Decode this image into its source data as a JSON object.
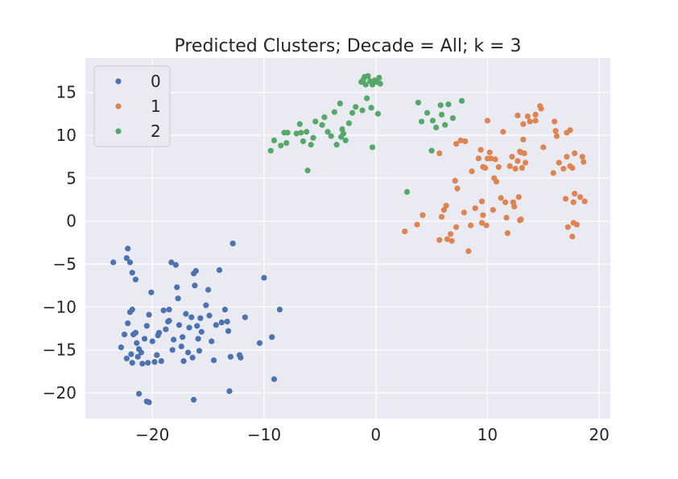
{
  "chart_data": {
    "type": "scatter",
    "title": "Predicted Clusters; Decade = All; k = 3",
    "xlabel": "",
    "ylabel": "",
    "xlim": [
      -26,
      21
    ],
    "ylim": [
      -23,
      19
    ],
    "xticks": [
      -20,
      -10,
      0,
      10,
      20
    ],
    "yticks": [
      -20,
      -15,
      -10,
      -5,
      0,
      5,
      10,
      15
    ],
    "grid": true,
    "legend_position": "top-left",
    "series": [
      {
        "name": "0",
        "color": "#4c72b0",
        "points": [
          [
            -23.5,
            -4.8
          ],
          [
            -22.2,
            -3.2
          ],
          [
            -22.3,
            -4.3
          ],
          [
            -22,
            -4.8
          ],
          [
            -21.8,
            -6
          ],
          [
            -21.5,
            -6.8
          ],
          [
            -22.8,
            -14.7
          ],
          [
            -22.5,
            -13.2
          ],
          [
            -22.2,
            -11.9
          ],
          [
            -22,
            -10.6
          ],
          [
            -21.8,
            -10.3
          ],
          [
            -21.7,
            -13.2
          ],
          [
            -21.5,
            -13
          ],
          [
            -21.4,
            -14.2
          ],
          [
            -21.2,
            -14.9
          ],
          [
            -21.9,
            -15.5
          ],
          [
            -22.3,
            -16
          ],
          [
            -21.8,
            -16.5
          ],
          [
            -21.3,
            -15.8
          ],
          [
            -21,
            -15.3
          ],
          [
            -20.9,
            -16.6
          ],
          [
            -20.7,
            -13.7
          ],
          [
            -20.5,
            -12.2
          ],
          [
            -20.3,
            -10.9
          ],
          [
            -20.1,
            -8.3
          ],
          [
            -20,
            -14
          ],
          [
            -19.8,
            -16.4
          ],
          [
            -19.6,
            -15.6
          ],
          [
            -19.4,
            -13
          ],
          [
            -19.2,
            -16.3
          ],
          [
            -19,
            -10.4
          ],
          [
            -18.8,
            -12.6
          ],
          [
            -18.6,
            -11.7
          ],
          [
            -18.5,
            -10.3
          ],
          [
            -18.3,
            -4.8
          ],
          [
            -18.2,
            -15
          ],
          [
            -18.1,
            -13.8
          ],
          [
            -17.9,
            -5.1
          ],
          [
            -17.8,
            -7.7
          ],
          [
            -17.7,
            -9
          ],
          [
            -17.6,
            -12.1
          ],
          [
            -17.4,
            -14.6
          ],
          [
            -17.2,
            -16.3
          ],
          [
            -17,
            -10.8
          ],
          [
            -16.8,
            -15.3
          ],
          [
            -16.7,
            -12.4
          ],
          [
            -16.5,
            -11.2
          ],
          [
            -16.4,
            -15.9
          ],
          [
            -16.3,
            -6.1
          ],
          [
            -16.1,
            -5.8
          ],
          [
            -16.2,
            -7.5
          ],
          [
            -16,
            -12.2
          ],
          [
            -15.9,
            -13.7
          ],
          [
            -15.8,
            -15.1
          ],
          [
            -15.7,
            -11.3
          ],
          [
            -15.6,
            -12.9
          ],
          [
            -15.2,
            -9.8
          ],
          [
            -14.9,
            -11
          ],
          [
            -15,
            -8
          ],
          [
            -14.7,
            -14
          ],
          [
            -14.5,
            -16.2
          ],
          [
            -14.3,
            -12.1
          ],
          [
            -14,
            -5.7
          ],
          [
            -13.8,
            -11.8
          ],
          [
            -13.5,
            -10.3
          ],
          [
            -13.3,
            -11.7
          ],
          [
            -13.2,
            -12.8
          ],
          [
            -13,
            -15.8
          ],
          [
            -12.8,
            -2.6
          ],
          [
            -12.2,
            -15.6
          ],
          [
            -12.1,
            -15.9
          ],
          [
            -11.7,
            -11.2
          ],
          [
            -10.4,
            -14.2
          ],
          [
            -10,
            -6.6
          ],
          [
            -9.3,
            -13.5
          ],
          [
            -9.1,
            -18.4
          ],
          [
            -8.6,
            -10.3
          ],
          [
            -20.3,
            -21.1
          ],
          [
            -20.5,
            -21.0
          ],
          [
            -21.2,
            -20.1
          ],
          [
            -16.3,
            -20.8
          ],
          [
            -13.1,
            -19.8
          ],
          [
            -18.5,
            -11.6
          ],
          [
            -17.3,
            -13.5
          ],
          [
            -19.5,
            -13.3
          ],
          [
            -20.4,
            -16.5
          ]
        ]
      },
      {
        "name": "1",
        "color": "#dd8452",
        "points": [
          [
            2.6,
            -1.2
          ],
          [
            3.7,
            -0.4
          ],
          [
            4.2,
            0.7
          ],
          [
            5.7,
            -2.2
          ],
          [
            5.9,
            0.5
          ],
          [
            6.1,
            1.3
          ],
          [
            6.3,
            1.8
          ],
          [
            6.4,
            -2.1
          ],
          [
            6.8,
            -2.3
          ],
          [
            7.2,
            -0.7
          ],
          [
            6.7,
            -1.5
          ],
          [
            7.1,
            4.7
          ],
          [
            7.3,
            3.8
          ],
          [
            7.6,
            9.4
          ],
          [
            7.2,
            9
          ],
          [
            8,
            9.3
          ],
          [
            7.9,
            1
          ],
          [
            8.3,
            -3.5
          ],
          [
            8.5,
            -0.5
          ],
          [
            8.6,
            5.8
          ],
          [
            8.9,
            1.5
          ],
          [
            9.2,
            7.3
          ],
          [
            9.4,
            8.3
          ],
          [
            9.5,
            2.3
          ],
          [
            9.6,
            0.7
          ],
          [
            9.5,
            -0.2
          ],
          [
            9.8,
            6.2
          ],
          [
            9.9,
            -0.5
          ],
          [
            10,
            7.3
          ],
          [
            10.3,
            7.3
          ],
          [
            10.6,
            5
          ],
          [
            10.8,
            4.6
          ],
          [
            10.5,
            1.3
          ],
          [
            10.7,
            7.2
          ],
          [
            11.2,
            2.7
          ],
          [
            11.4,
            10.4
          ],
          [
            11.6,
            2.2
          ],
          [
            11.7,
            0.4
          ],
          [
            11.8,
            -1.4
          ],
          [
            12,
            6.4
          ],
          [
            12.2,
            7.5
          ],
          [
            12.3,
            2.2
          ],
          [
            12.4,
            1.7
          ],
          [
            12.5,
            6.1
          ],
          [
            12.7,
            7
          ],
          [
            12.9,
            0.1
          ],
          [
            12.8,
            2.8
          ],
          [
            13,
            8
          ],
          [
            13.2,
            9.5
          ],
          [
            13.2,
            11.3
          ],
          [
            13.4,
            6.8
          ],
          [
            13.6,
            12.2
          ],
          [
            13.8,
            11.6
          ],
          [
            14.3,
            12.4
          ],
          [
            14.7,
            13.4
          ],
          [
            14.8,
            13.1
          ],
          [
            15,
            8.6
          ],
          [
            15.9,
            5.6
          ],
          [
            16,
            11.6
          ],
          [
            16.1,
            10.5
          ],
          [
            16.2,
            9.9
          ],
          [
            16.4,
            6.8
          ],
          [
            16.8,
            6.1
          ],
          [
            17.1,
            10.3
          ],
          [
            17.4,
            10.6
          ],
          [
            17.2,
            -0.7
          ],
          [
            17.4,
            6.4
          ],
          [
            17.6,
            -1.8
          ],
          [
            17.7,
            -0.2
          ],
          [
            17.8,
            3.2
          ],
          [
            18,
            -0.4
          ],
          [
            17.8,
            7.9
          ],
          [
            18.3,
            2.8
          ],
          [
            18.5,
            7.5
          ],
          [
            18.6,
            6.9
          ],
          [
            18.7,
            2.3
          ],
          [
            17.1,
            7.5
          ],
          [
            17,
            2.6
          ],
          [
            13.1,
            6.2
          ],
          [
            12.9,
            8.1
          ],
          [
            13.3,
            7.9
          ],
          [
            10,
            11.7
          ],
          [
            12.7,
            12.3
          ],
          [
            14.3,
            11.7
          ],
          [
            17.6,
            6.2
          ],
          [
            17.7,
            2.2
          ],
          [
            13,
            0.2
          ],
          [
            11,
            6.3
          ],
          [
            9.6,
            6.3
          ],
          [
            5.7,
            7.9
          ],
          [
            10.2,
            8
          ]
        ]
      },
      {
        "name": "2",
        "color": "#55a868",
        "points": [
          [
            -9.4,
            8.2
          ],
          [
            -9.1,
            9.4
          ],
          [
            -8.5,
            8.8
          ],
          [
            -8.2,
            10.3
          ],
          [
            -7.9,
            10.3
          ],
          [
            -8,
            9.1
          ],
          [
            -7.1,
            10.2
          ],
          [
            -6.7,
            10.3
          ],
          [
            -6.5,
            9.3
          ],
          [
            -6.1,
            5.9
          ],
          [
            -5.8,
            8.9
          ],
          [
            -5.6,
            9.7
          ],
          [
            -5.4,
            11.6
          ],
          [
            -4.8,
            11.2
          ],
          [
            -4.6,
            12.1
          ],
          [
            -4.3,
            10.4
          ],
          [
            -4,
            9.9
          ],
          [
            -3.7,
            12.7
          ],
          [
            -3.5,
            8.9
          ],
          [
            -3.2,
            13.7
          ],
          [
            -3,
            10.7
          ],
          [
            -2.9,
            10.2
          ],
          [
            -2.7,
            9.4
          ],
          [
            -2.4,
            11.4
          ],
          [
            -2.1,
            12.6
          ],
          [
            -1.8,
            13.3
          ],
          [
            -1.2,
            12.9
          ],
          [
            -0.8,
            14.3
          ],
          [
            -0.3,
            8.6
          ],
          [
            -0.4,
            13.2
          ],
          [
            0.2,
            12.5
          ],
          [
            -1.3,
            16.2
          ],
          [
            -1.1,
            16.5
          ],
          [
            -0.9,
            15.9
          ],
          [
            -0.7,
            16.9
          ],
          [
            -0.5,
            16.3
          ],
          [
            -0.3,
            15.9
          ],
          [
            -0.1,
            16.4
          ],
          [
            0.1,
            16.2
          ],
          [
            0.3,
            16.7
          ],
          [
            0.4,
            16
          ],
          [
            -1.0,
            16.8
          ],
          [
            -6.8,
            11.3
          ],
          [
            -3.1,
            9.8
          ],
          [
            -6.2,
            10.4
          ],
          [
            3.8,
            13.8
          ],
          [
            4.1,
            11.6
          ],
          [
            4.6,
            12.6
          ],
          [
            5.1,
            11.7
          ],
          [
            5.4,
            10.9
          ],
          [
            5.8,
            13.5
          ],
          [
            5.9,
            12.4
          ],
          [
            6.2,
            11.2
          ],
          [
            6.5,
            13.6
          ],
          [
            6.9,
            12
          ],
          [
            7.7,
            14
          ],
          [
            5,
            8.2
          ],
          [
            2.8,
            3.4
          ]
        ]
      }
    ]
  }
}
